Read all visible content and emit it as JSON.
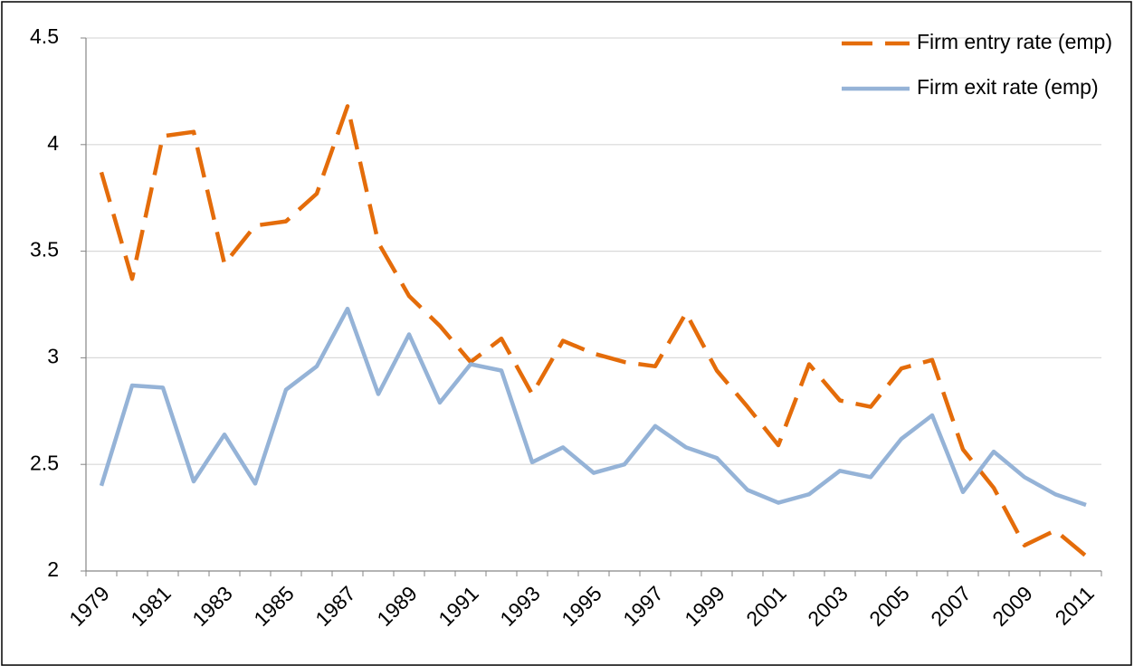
{
  "chart_data": {
    "type": "line",
    "categories": [
      "1979",
      null,
      "1981",
      null,
      "1983",
      null,
      "1985",
      null,
      "1987",
      null,
      "1989",
      null,
      "1991",
      null,
      "1993",
      null,
      "1995",
      null,
      "1997",
      null,
      "1999",
      null,
      "2001",
      null,
      "2003",
      null,
      "2005",
      null,
      "2007",
      null,
      "2009",
      null,
      "2011"
    ],
    "series": [
      {
        "name": "Firm entry rate (emp)",
        "color": "#e46c0a",
        "line_style": "dashed",
        "values": [
          3.87,
          3.37,
          4.04,
          4.06,
          3.44,
          3.62,
          3.64,
          3.77,
          4.18,
          3.54,
          3.29,
          3.15,
          2.98,
          3.09,
          2.83,
          3.08,
          3.02,
          2.98,
          2.96,
          3.21,
          2.94,
          2.77,
          2.59,
          2.97,
          2.8,
          2.77,
          2.95,
          2.99,
          2.57,
          2.39,
          2.12,
          2.19,
          2.07
        ]
      },
      {
        "name": "Firm exit rate (emp)",
        "color": "#95b3d7",
        "line_style": "solid",
        "values": [
          2.4,
          2.87,
          2.86,
          2.42,
          2.64,
          2.41,
          2.85,
          2.96,
          3.23,
          2.83,
          3.11,
          2.79,
          2.97,
          2.94,
          2.51,
          2.58,
          2.46,
          2.5,
          2.68,
          2.58,
          2.53,
          2.38,
          2.32,
          2.36,
          2.47,
          2.44,
          2.62,
          2.73,
          2.37,
          2.56,
          2.44,
          2.36,
          2.31
        ]
      }
    ],
    "ylim": [
      2,
      4.5
    ],
    "yticks": [
      2,
      2.5,
      3,
      3.5,
      4,
      4.5
    ],
    "grid": true,
    "legend": "top-right"
  }
}
